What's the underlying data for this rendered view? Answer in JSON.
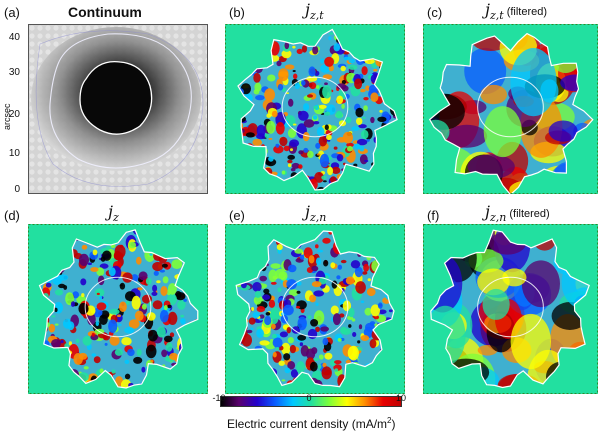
{
  "figure": {
    "panels": [
      {
        "id": "a",
        "label": "(a)",
        "title": "Continuum",
        "kind": "continuum"
      },
      {
        "id": "b",
        "label": "(b)",
        "title_base": "j",
        "title_sub": "z,t",
        "note": "",
        "kind": "map"
      },
      {
        "id": "c",
        "label": "(c)",
        "title_base": "j",
        "title_sub": "z,t",
        "note": "(filtered)",
        "kind": "map-filtered"
      },
      {
        "id": "d",
        "label": "(d)",
        "title_base": "j",
        "title_sub": "z",
        "note": "",
        "kind": "map"
      },
      {
        "id": "e",
        "label": "(e)",
        "title_base": "j",
        "title_sub": "z,n",
        "note": "",
        "kind": "map"
      },
      {
        "id": "f",
        "label": "(f)",
        "title_base": "j",
        "title_sub": "z,n",
        "note": "(filtered)",
        "kind": "map-filtered"
      }
    ],
    "y_axis": {
      "label": "arcsec",
      "ticks": [
        "40",
        "30",
        "20",
        "10",
        "0"
      ]
    },
    "colorbar": {
      "min_label": "-10",
      "mid_label": "0",
      "max_label": "10",
      "label_text": "Electric current density (mA/m",
      "label_sup": "2",
      "label_close": ")",
      "stops": [
        "#000000",
        "#5a006e",
        "#2200cc",
        "#0a5cff",
        "#00c8ff",
        "#22e0a0",
        "#7cff3a",
        "#ffff00",
        "#ff8c00",
        "#e80000",
        "#c00000"
      ]
    },
    "colors": {
      "background_field": "#22e0a0",
      "contour": "#ffffff",
      "frame": "#2d8a2d"
    }
  }
}
